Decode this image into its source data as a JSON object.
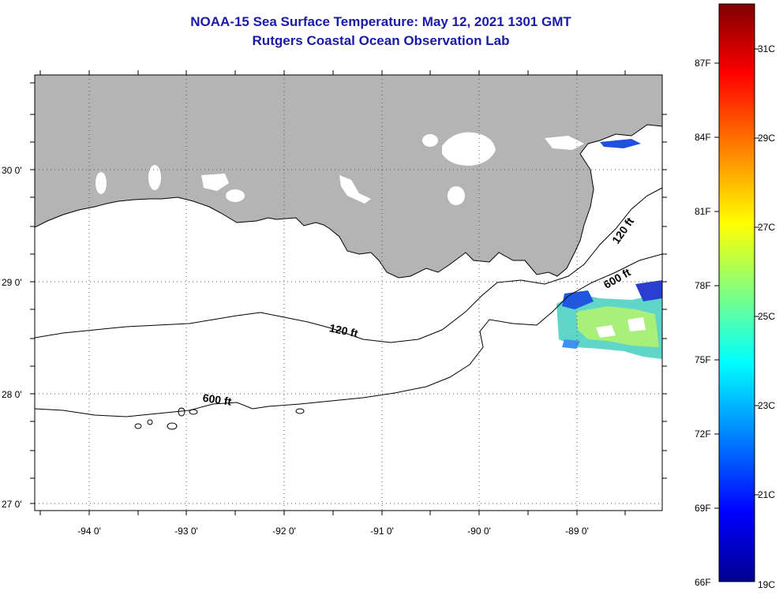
{
  "title": {
    "line1": "NOAA-15 Sea Surface Temperature:  May 12, 2021 1301 GMT",
    "line2": "Rutgers Coastal Ocean Observation Lab"
  },
  "map": {
    "lat_labels": [
      "30 0'",
      "29 0'",
      "28 0'",
      "27 0'"
    ],
    "lon_labels": [
      "-94 0'",
      "-93 0'",
      "-92 0'",
      "-91 0'",
      "-90 0'",
      "-89 0'"
    ],
    "contours": [
      {
        "label": "120 ft",
        "depth": "120 ft"
      },
      {
        "label": "600 ft",
        "depth": "600 ft"
      }
    ],
    "land_color": "#b4b4b4",
    "water_color": "#ffffff"
  },
  "colorbar": {
    "fahrenheit_labels": [
      "87F",
      "84F",
      "81F",
      "78F",
      "75F",
      "72F",
      "69F",
      "66F"
    ],
    "celsius_labels": [
      "31C",
      "29C",
      "27C",
      "25C",
      "23C",
      "21C",
      "19C"
    ],
    "colors": [
      "#7f0000",
      "#ff0000",
      "#ff8000",
      "#ffff00",
      "#80ff80",
      "#00ffff",
      "#0080ff",
      "#0000ff",
      "#00008f"
    ]
  },
  "chart_data": {
    "type": "heatmap",
    "title": "NOAA-15 Sea Surface Temperature:  May 12, 2021 1301 GMT",
    "subtitle": "Rutgers Coastal Ocean Observation Lab",
    "units": [
      "F",
      "C"
    ],
    "scale_range_C": [
      19,
      32
    ],
    "observed_patch": {
      "region": "east of -89 0', near 28.5-29 0'",
      "dominant_temp_C": 24.5
    }
  }
}
